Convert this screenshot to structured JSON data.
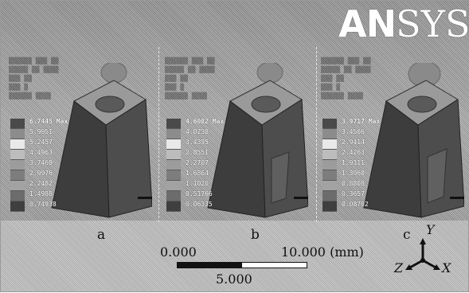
{
  "logo": {
    "text_main": "AN",
    "text_sys": "SYS"
  },
  "panels": [
    {
      "label": "a",
      "legend_max": "6.7445 Max",
      "legend_values": [
        "5.9951",
        "5.2457",
        "4.4963",
        "3.7469",
        "2.9976",
        "2.2482",
        "1.4988",
        "0.74938"
      ]
    },
    {
      "label": "b",
      "legend_max": "4.6082 Max",
      "legend_values": [
        "4.0238",
        "3.4395",
        "2.8551",
        "2.2707",
        "1.6864",
        "1.1020",
        "0.51766",
        "0.06335"
      ]
    },
    {
      "label": "c",
      "legend_max": "3.9717 Max",
      "legend_values": [
        "3.4566",
        "2.9414",
        "2.4263",
        "1.9111",
        "1.3960",
        "0.8808",
        "0.3657",
        "0.08702"
      ]
    }
  ],
  "scale": {
    "zero": "0.000",
    "max": "10.000 (mm)",
    "mid": "5.000",
    "fill_fraction": 0.5
  },
  "triad": {
    "x": "X",
    "y": "Y",
    "z": "Z"
  },
  "colors": {
    "legend_swatches": [
      "#4a4a4a",
      "#8c8c8c",
      "#e9e9e9",
      "#bdbdbd",
      "#9c9c9c",
      "#7d7d7d",
      "#a2a2a2",
      "#6c6c6c",
      "#3f3f3f"
    ],
    "model_dark": "#3a3a3a",
    "model_mid": "#4d4d4d",
    "model_light": "#9a9a9a"
  },
  "icons": {
    "logo": "ansys-logo",
    "triad": "coordinate-triad-icon"
  }
}
